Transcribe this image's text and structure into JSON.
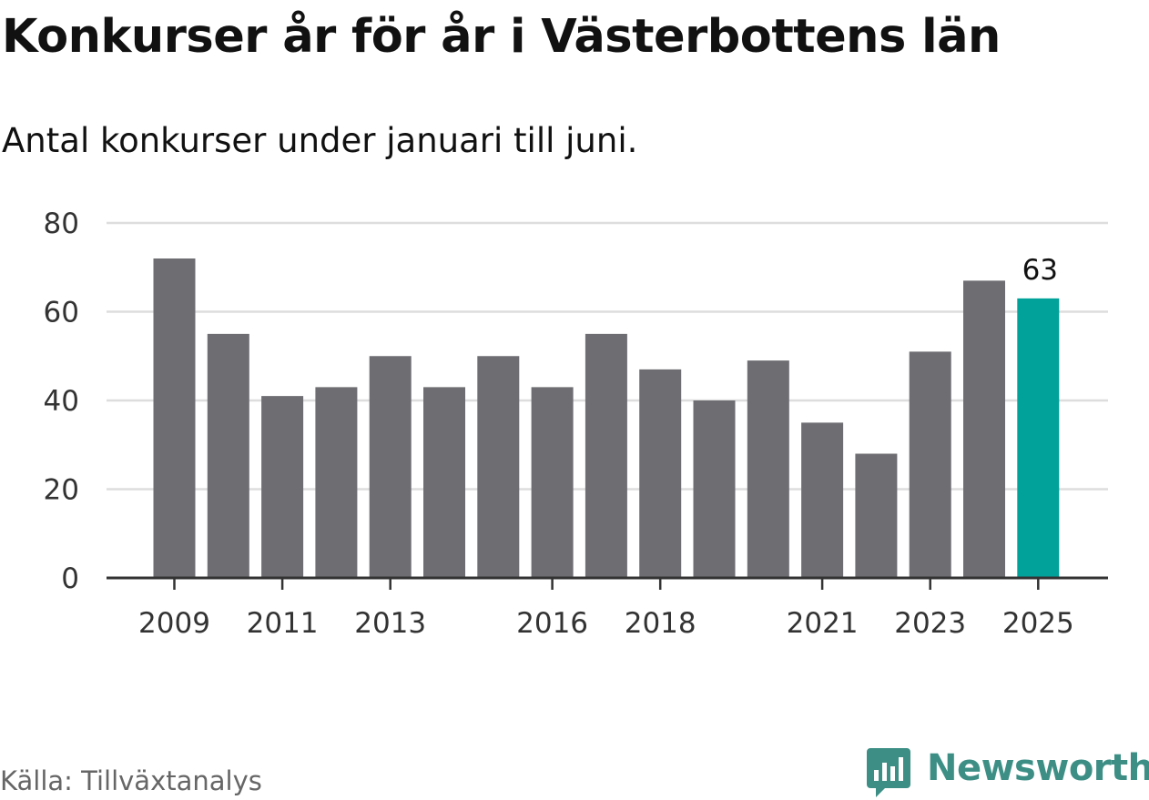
{
  "title": "Konkurser år för år i Västerbottens län",
  "subtitle": "Antal konkurser under januari till juni.",
  "source": "Källa: Tillväxtanalys",
  "brand": {
    "name": "Newsworthy",
    "icon": "newsworthy-bar-chart-badge-icon",
    "color": "#3d8f86"
  },
  "chart_data": {
    "type": "bar",
    "categories": [
      "2009",
      "2010",
      "2011",
      "2012",
      "2013",
      "2014",
      "2015",
      "2016",
      "2017",
      "2018",
      "2019",
      "2020",
      "2021",
      "2022",
      "2023",
      "2024",
      "2025"
    ],
    "values": [
      72,
      55,
      41,
      43,
      50,
      43,
      50,
      43,
      55,
      47,
      40,
      49,
      35,
      28,
      51,
      67,
      63
    ],
    "x_tick_labels": [
      "2009",
      "2011",
      "2013",
      "2016",
      "2018",
      "2021",
      "2023",
      "2025"
    ],
    "y_ticks": [
      "0",
      "20",
      "40",
      "60",
      "80"
    ],
    "ylim": [
      0,
      80
    ],
    "grid": true,
    "highlight": {
      "category": "2025",
      "label": "63",
      "color": "#00a29a"
    },
    "bar_color": "#6e6d72"
  }
}
